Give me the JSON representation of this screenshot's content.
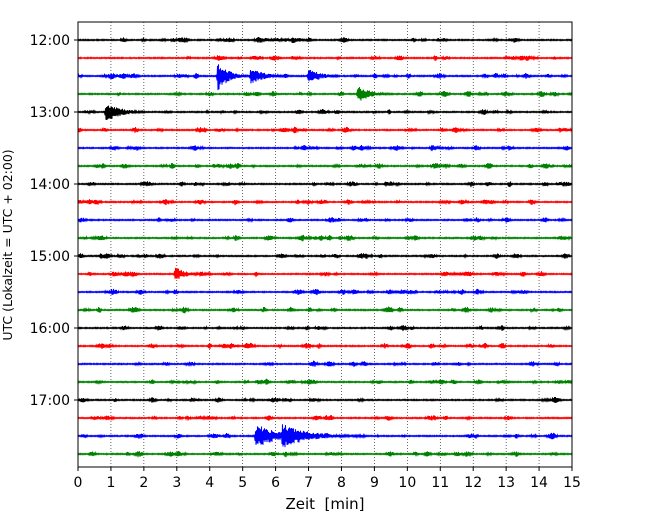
{
  "chart_data": {
    "type": "line",
    "title": "",
    "xlabel": "Zeit  [min]",
    "ylabel": "UTC (Lokalzeit = UTC + 02:00)",
    "xlim": [
      0,
      15
    ],
    "x_ticks": [
      0,
      1,
      2,
      3,
      4,
      5,
      6,
      7,
      8,
      9,
      10,
      11,
      12,
      13,
      14,
      15
    ],
    "x_tick_labels": [
      "0",
      "1",
      "2",
      "3",
      "4",
      "5",
      "6",
      "7",
      "8",
      "9",
      "10",
      "11",
      "12",
      "13",
      "14",
      "15"
    ],
    "y_tick_labels": [
      "12:00",
      "13:00",
      "14:00",
      "15:00",
      "16:00",
      "17:00"
    ],
    "grid": "vertical dotted",
    "trace_count": 24,
    "trace_minutes": 15,
    "first_trace": "12:00",
    "colors": [
      "#000000",
      "#ff0000",
      "#0000ff",
      "#008000"
    ],
    "events": [
      {
        "trace": 2,
        "x": 4.25,
        "amplitude": 16,
        "duration": 0.5
      },
      {
        "trace": 2,
        "x": 5.25,
        "amplitude": 8,
        "duration": 0.7
      },
      {
        "trace": 2,
        "x": 7.0,
        "amplitude": 8,
        "duration": 0.6
      },
      {
        "trace": 3,
        "x": 8.5,
        "amplitude": 9,
        "duration": 0.6
      },
      {
        "trace": 4,
        "x": 0.85,
        "amplitude": 11,
        "duration": 0.7
      },
      {
        "trace": 13,
        "x": 2.95,
        "amplitude": 8,
        "duration": 0.5
      },
      {
        "trace": 22,
        "x": 5.4,
        "amplitude": 13,
        "duration": 1.0
      },
      {
        "trace": 22,
        "x": 6.2,
        "amplitude": 13,
        "duration": 1.2
      }
    ]
  }
}
